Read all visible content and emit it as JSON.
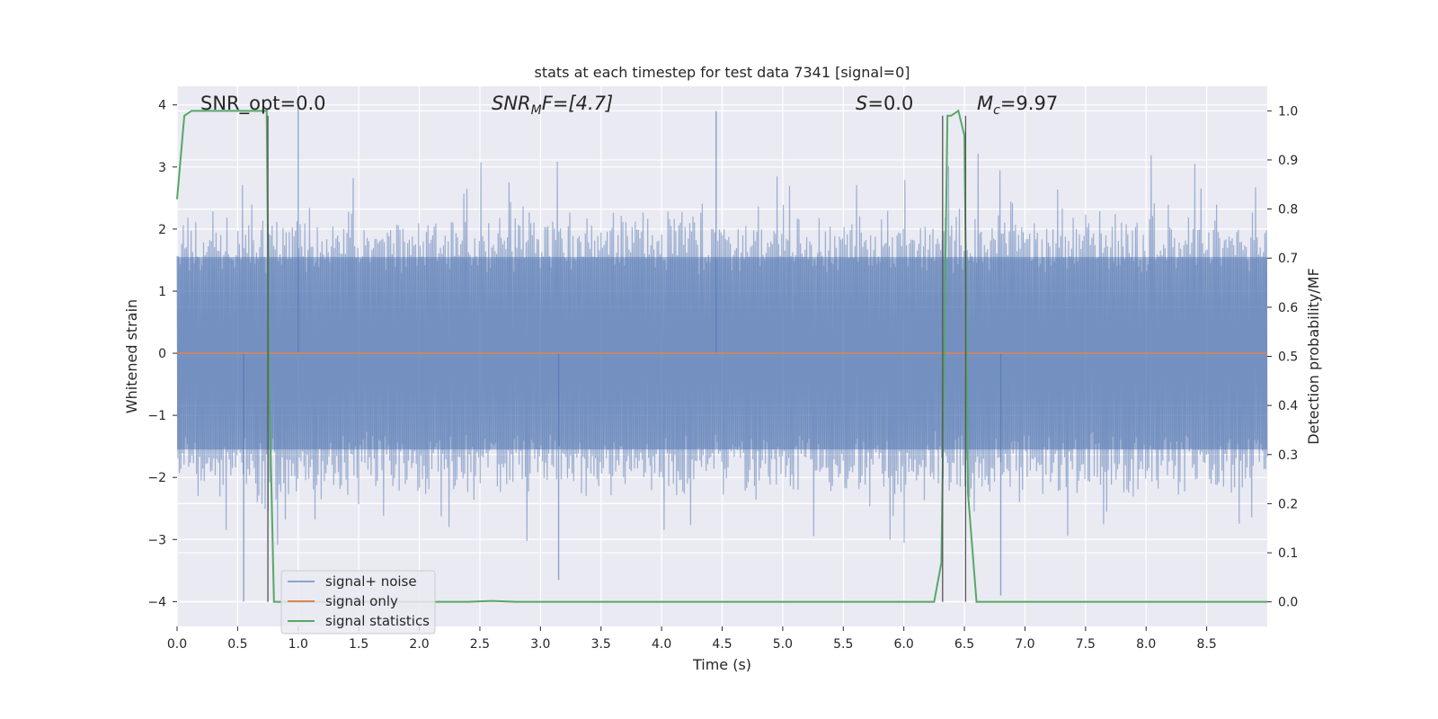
{
  "chart_data": {
    "type": "line",
    "title": "stats at each timestep for test data 7341 [signal=0]",
    "xlabel": "Time (s)",
    "ylabel_left": "Whitened strain",
    "ylabel_right": "Detection probability/MF",
    "xlim": [
      0.0,
      9.0
    ],
    "ylim_left": [
      -4.4,
      4.3
    ],
    "ylim_right": [
      -0.05,
      1.05
    ],
    "x_ticks": [
      "0.0",
      "0.5",
      "1.0",
      "1.5",
      "2.0",
      "2.5",
      "3.0",
      "3.5",
      "4.0",
      "4.5",
      "5.0",
      "5.5",
      "6.0",
      "6.5",
      "7.0",
      "7.5",
      "8.0",
      "8.5"
    ],
    "y_left_ticks": [
      "−4",
      "−3",
      "−2",
      "−1",
      "0",
      "1",
      "2",
      "3",
      "4"
    ],
    "y_right_ticks": [
      "0.0",
      "0.1",
      "0.2",
      "0.3",
      "0.4",
      "0.5",
      "0.6",
      "0.7",
      "0.8",
      "0.9",
      "1.0"
    ],
    "grid": true,
    "legend_position": "lower-left",
    "annotations": {
      "snr_opt": "SNR_opt=0.0",
      "snr_mf_italic": "SNR",
      "snr_mf_sub": "M",
      "snr_mf_rest": "F=[4.7]",
      "s_italic": "S",
      "s_rest": "=0.0",
      "mc_italic": "M",
      "mc_sub": "c",
      "mc_rest": "=9.97"
    },
    "vertical_lines_x": [
      0.75,
      6.32,
      6.51
    ],
    "series": [
      {
        "name": "signal+ noise",
        "color": "#4c72b0",
        "noise_envelope": {
          "core_abs": 1.55,
          "typical_peak_abs": 2.4,
          "max_peaks": [
            3.95,
            -4.0
          ]
        }
      },
      {
        "name": "signal only",
        "color": "#dd8452",
        "x": [
          0.0,
          9.0
        ],
        "y": [
          0.0,
          0.0
        ]
      },
      {
        "name": "signal statistics",
        "color": "#55a868",
        "x": [
          0.0,
          0.06,
          0.12,
          0.3,
          0.5,
          0.7,
          0.74,
          0.76,
          0.8,
          0.9,
          1.2,
          1.8,
          2.4,
          2.6,
          2.8,
          3.5,
          4.5,
          5.5,
          6.25,
          6.31,
          6.36,
          6.39,
          6.45,
          6.5,
          6.53,
          6.6,
          6.65,
          7.0,
          8.0,
          9.0
        ],
        "y": [
          0.82,
          0.99,
          1.0,
          1.0,
          1.0,
          1.0,
          1.0,
          0.45,
          0.0,
          0.0,
          0.0,
          0.0,
          0.0,
          0.002,
          0.0,
          0.0,
          0.0,
          0.0,
          0.0,
          0.08,
          0.99,
          0.99,
          1.0,
          0.95,
          0.22,
          0.0,
          0.0,
          0.0,
          0.0,
          0.0
        ]
      }
    ]
  }
}
